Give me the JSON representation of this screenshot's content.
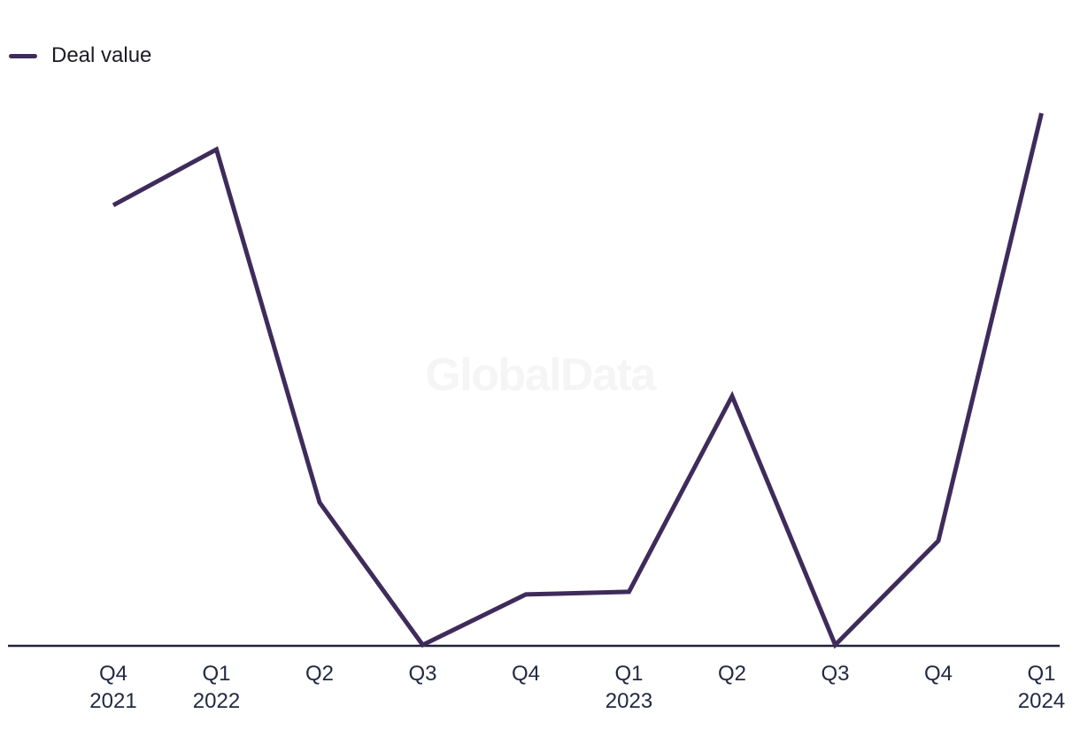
{
  "legend": {
    "label": "Deal value",
    "swatch_color": "#3f2b5b"
  },
  "watermark": {
    "text": "GlobalData",
    "color": "#f5f5f5"
  },
  "chart_data": {
    "type": "line",
    "title": "",
    "xlabel": "",
    "ylabel": "",
    "legend_position": "top-left",
    "grid": false,
    "y_axis_visible": false,
    "value_scale": "relative-percent-of-series-max",
    "ylim": [
      0,
      100
    ],
    "axis_color": "#20243a",
    "tick_text_color": "#232943",
    "categories": [
      "Q4 2021",
      "Q1 2022",
      "Q2 2022",
      "Q3 2022",
      "Q4 2022",
      "Q1 2023",
      "Q2 2023",
      "Q3 2023",
      "Q4 2023",
      "Q1 2024"
    ],
    "tick_labels": [
      {
        "quarter": "Q4",
        "year": "2021"
      },
      {
        "quarter": "Q1",
        "year": "2022"
      },
      {
        "quarter": "Q2",
        "year": ""
      },
      {
        "quarter": "Q3",
        "year": ""
      },
      {
        "quarter": "Q4",
        "year": ""
      },
      {
        "quarter": "Q1",
        "year": "2023"
      },
      {
        "quarter": "Q2",
        "year": ""
      },
      {
        "quarter": "Q3",
        "year": ""
      },
      {
        "quarter": "Q4",
        "year": ""
      },
      {
        "quarter": "Q1",
        "year": "2024"
      }
    ],
    "series": [
      {
        "name": "Deal value",
        "color": "#3f2b5b",
        "values": [
          82.7,
          93.2,
          26.8,
          0,
          9.5,
          10.0,
          46.8,
          0,
          19.6,
          100
        ]
      }
    ]
  }
}
